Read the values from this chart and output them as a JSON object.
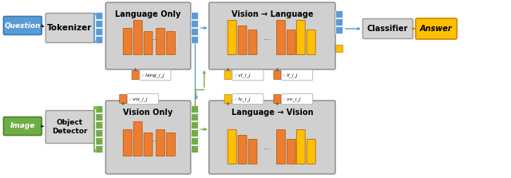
{
  "fig_width": 6.4,
  "fig_height": 2.23,
  "dpi": 100,
  "bg_color": "#ffffff",
  "question_color": "#5b9bd5",
  "image_color": "#70ad47",
  "tokenizer_color": "#d4d4d4",
  "answer_color": "#ffc000",
  "blue_token": "#5b9bd5",
  "green_token": "#70ad47",
  "orange_bar": "#ed7d31",
  "yellow_bar": "#ffc000",
  "arrow_blue": "#5b9bd5",
  "arrow_green": "#70ad47",
  "module_bg": "#d0d0d0",
  "label_bg": "#ffffff",
  "lang_label": ": lang_i_j",
  "vis_label": ": vis_i_j",
  "vl_label": ": vl_i_j",
  "ll_label": ": ll_i_j",
  "lv_label": ": lv_i_j",
  "vv_label": ": vv_i_j"
}
